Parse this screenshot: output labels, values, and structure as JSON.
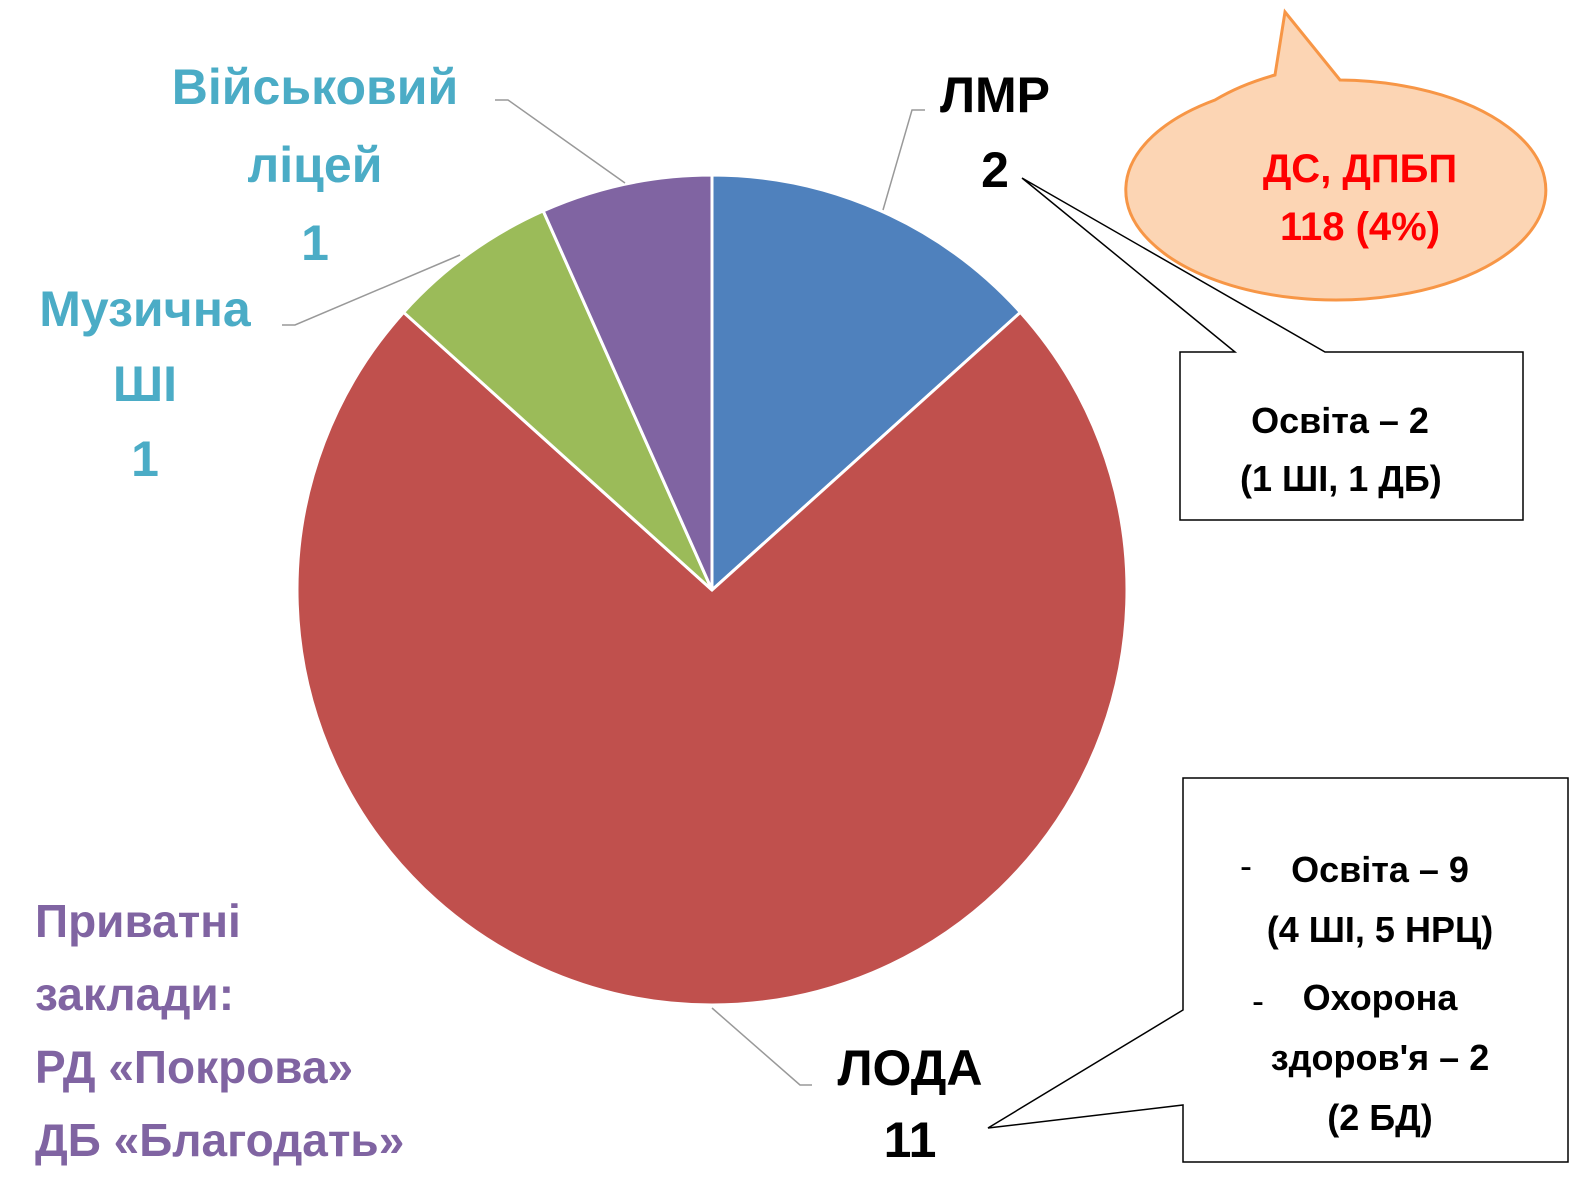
{
  "chart_data": {
    "type": "pie",
    "categories": [
      "ЛМР",
      "ЛОДА",
      "Музична ШІ",
      "Військовий ліцей"
    ],
    "values": [
      2,
      11,
      1,
      1
    ],
    "colors": [
      "#4f81bd",
      "#c0504d",
      "#9bbb59",
      "#8064a2"
    ],
    "label_colors": [
      "#000000",
      "#000000",
      "#4bacc6",
      "#4bacc6"
    ],
    "annotations": {
      "lmr_box": [
        "Освіта – 2",
        "(1 ШІ, 1 ДБ)"
      ],
      "bubble": [
        "ДС, ДПБП",
        "118 (4%)"
      ],
      "loda_box": [
        [
          "Освіта – 9",
          "(4 ШІ, 5 НРЦ)"
        ],
        [
          "Охорона",
          "здоров'я – 2",
          "(2 БД)"
        ]
      ],
      "private": [
        "Приватні",
        "заклади:",
        "РД «Покрова»",
        "ДБ «Благодать»"
      ]
    }
  }
}
